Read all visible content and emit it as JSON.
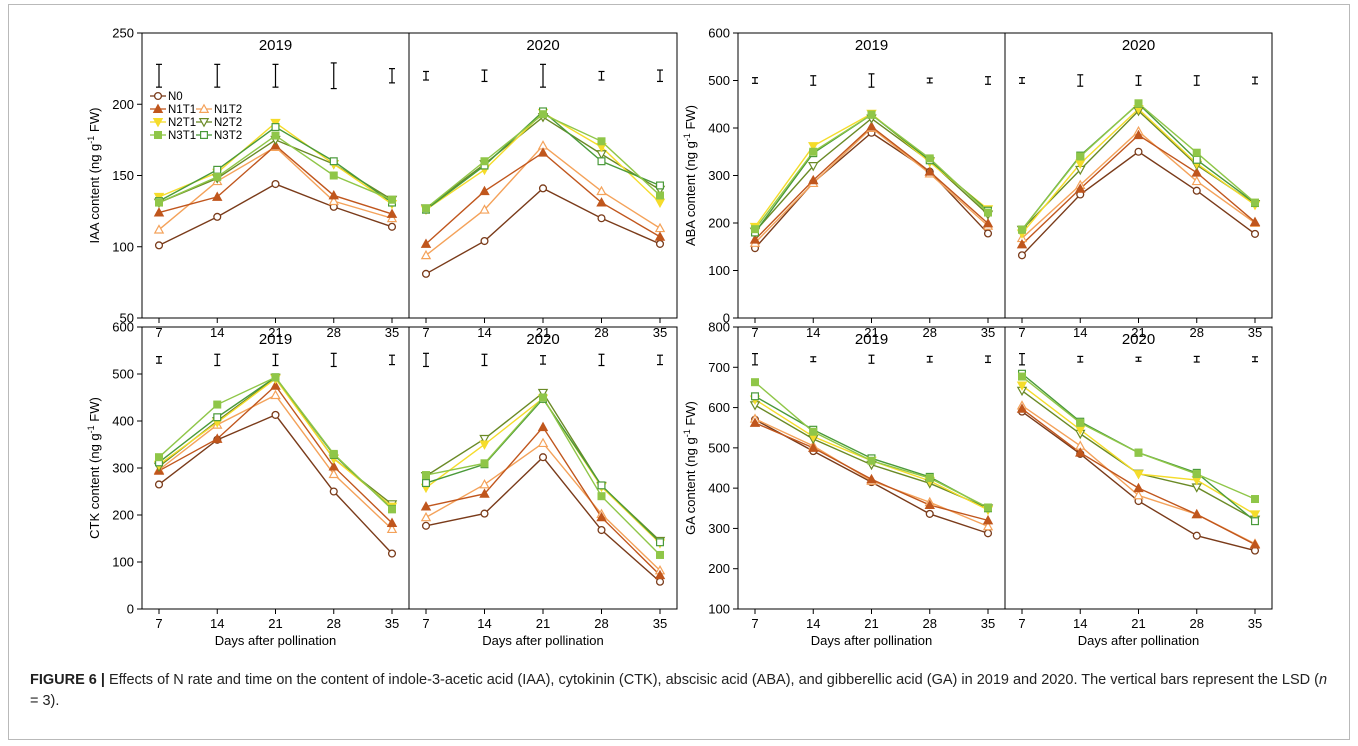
{
  "colors": {
    "N0": "#7a3b1a",
    "N1T1": "#c0561d",
    "N1T2": "#f4a25a",
    "N2T1": "#f5dc2b",
    "N2T2": "#6a8a26",
    "N3T1": "#8fc648",
    "N3T2": "#4a9a3a"
  },
  "markers": {
    "N0": "circle",
    "N1T1": "tri-up-filled",
    "N1T2": "tri-up-open",
    "N2T1": "tri-down-filled",
    "N2T2": "tri-down-open",
    "N3T1": "square-filled",
    "N3T2": "square-open"
  },
  "legend": {
    "rows": [
      [
        "N0"
      ],
      [
        "N1T1",
        "N1T2"
      ],
      [
        "N2T1",
        "N2T2"
      ],
      [
        "N3T1",
        "N3T2"
      ]
    ]
  },
  "caption": {
    "label": "FIGURE 6 |",
    "text_before_n": " Effects of N rate and time on the content of indole-3-acetic acid (IAA), cytokinin (CTK), abscisic acid (ABA), and gibberellic acid (GA) in 2019 and 2020. The vertical bars represent the LSD (",
    "n": "n",
    "text_after_n": " = 3)."
  },
  "chart_data": [
    {
      "type": "line",
      "ylabel_main": "IAA content (ng g",
      "ylabel_sup": "-1",
      "ylabel_end": " FW)",
      "ylim": [
        50,
        250
      ],
      "yticks": [
        50,
        100,
        150,
        200,
        250
      ],
      "xticks": [
        7,
        14,
        21,
        28,
        35
      ],
      "xlabel": "",
      "x": [
        7,
        14,
        21,
        28,
        35
      ],
      "lsd_y": 220,
      "panels": [
        {
          "year": "2019",
          "lsd": [
            8,
            8,
            8,
            9,
            5
          ],
          "series": [
            {
              "name": "N0",
              "values": [
                101,
                121,
                144,
                128,
                114
              ]
            },
            {
              "name": "N1T1",
              "values": [
                124,
                135,
                171,
                136,
                123
              ]
            },
            {
              "name": "N1T2",
              "values": [
                112,
                146,
                170,
                132,
                120
              ]
            },
            {
              "name": "N2T1",
              "values": [
                135,
                152,
                187,
                158,
                130
              ]
            },
            {
              "name": "N2T2",
              "values": [
                131,
                148,
                175,
                158,
                133
              ]
            },
            {
              "name": "N3T1",
              "values": [
                131,
                149,
                178,
                150,
                133
              ]
            },
            {
              "name": "N3T2",
              "values": [
                132,
                154,
                184,
                160,
                131
              ]
            }
          ]
        },
        {
          "year": "2020",
          "lsd": [
            3,
            4,
            8,
            3,
            4
          ],
          "series": [
            {
              "name": "N0",
              "values": [
                81,
                104,
                141,
                120,
                102
              ]
            },
            {
              "name": "N1T1",
              "values": [
                102,
                139,
                166,
                131,
                107
              ]
            },
            {
              "name": "N1T2",
              "values": [
                94,
                126,
                171,
                139,
                113
              ]
            },
            {
              "name": "N2T1",
              "values": [
                126,
                154,
                194,
                170,
                131
              ]
            },
            {
              "name": "N2T2",
              "values": [
                127,
                158,
                191,
                165,
                140
              ]
            },
            {
              "name": "N3T1",
              "values": [
                127,
                160,
                193,
                174,
                136
              ]
            },
            {
              "name": "N3T2",
              "values": [
                126,
                157,
                195,
                160,
                143
              ]
            }
          ]
        }
      ]
    },
    {
      "type": "line",
      "ylabel_main": "ABA content (ng g",
      "ylabel_sup": "-1",
      "ylabel_end": " FW)",
      "ylim": [
        0,
        600
      ],
      "yticks": [
        0,
        100,
        200,
        300,
        400,
        500,
        600
      ],
      "xticks": [
        7,
        14,
        21,
        28,
        35
      ],
      "xlabel": "",
      "x": [
        7,
        14,
        21,
        28,
        35
      ],
      "lsd_y": 500,
      "panels": [
        {
          "year": "2019",
          "lsd": [
            6,
            10,
            14,
            5,
            8
          ],
          "series": [
            {
              "name": "N0",
              "values": [
                147,
                285,
                390,
                308,
                178
              ]
            },
            {
              "name": "N1T1",
              "values": [
                165,
                290,
                403,
                308,
                199
              ]
            },
            {
              "name": "N1T2",
              "values": [
                158,
                284,
                400,
                304,
                194
              ]
            },
            {
              "name": "N2T1",
              "values": [
                192,
                362,
                430,
                328,
                229
              ]
            },
            {
              "name": "N2T2",
              "values": [
                182,
                320,
                420,
                330,
                218
              ]
            },
            {
              "name": "N3T1",
              "values": [
                187,
                350,
                428,
                336,
                222
              ]
            },
            {
              "name": "N3T2",
              "values": [
                180,
                347,
                428,
                332,
                226
              ]
            }
          ]
        },
        {
          "year": "2020",
          "lsd": [
            6,
            12,
            10,
            10,
            7
          ],
          "series": [
            {
              "name": "N0",
              "values": [
                132,
                260,
                350,
                268,
                177
              ]
            },
            {
              "name": "N1T1",
              "values": [
                155,
                272,
                385,
                306,
                202
              ]
            },
            {
              "name": "N1T2",
              "values": [
                168,
                280,
                393,
                288,
                200
              ]
            },
            {
              "name": "N2T1",
              "values": [
                178,
                325,
                440,
                325,
                238
              ]
            },
            {
              "name": "N2T2",
              "values": [
                186,
                312,
                436,
                322,
                240
              ]
            },
            {
              "name": "N3T1",
              "values": [
                186,
                340,
                452,
                348,
                243
              ]
            },
            {
              "name": "N3T2",
              "values": [
                186,
                342,
                451,
                333,
                242
              ]
            }
          ]
        }
      ]
    },
    {
      "type": "line",
      "ylabel_main": "CTK content (ng g",
      "ylabel_sup": "-1",
      "ylabel_end": " FW)",
      "ylim": [
        0,
        600
      ],
      "yticks": [
        0,
        100,
        200,
        300,
        400,
        500,
        600
      ],
      "xticks": [
        7,
        14,
        21,
        28,
        35
      ],
      "xlabel": "Days after pollination",
      "x": [
        7,
        14,
        21,
        28,
        35
      ],
      "lsd_y": 530,
      "panels": [
        {
          "year": "2019",
          "lsd": [
            7,
            12,
            12,
            14,
            10
          ],
          "series": [
            {
              "name": "N0",
              "values": [
                265,
                360,
                413,
                250,
                118
              ]
            },
            {
              "name": "N1T1",
              "values": [
                294,
                362,
                475,
                303,
                183
              ]
            },
            {
              "name": "N1T2",
              "values": [
                296,
                392,
                455,
                287,
                170
              ]
            },
            {
              "name": "N2T1",
              "values": [
                307,
                397,
                490,
                320,
                218
              ]
            },
            {
              "name": "N2T2",
              "values": [
                303,
                400,
                492,
                320,
                223
              ]
            },
            {
              "name": "N3T1",
              "values": [
                323,
                435,
                493,
                330,
                212
              ]
            },
            {
              "name": "N3T2",
              "values": [
                312,
                408,
                493,
                328,
                213
              ]
            }
          ]
        },
        {
          "year": "2020",
          "lsd": [
            14,
            12,
            9,
            12,
            10
          ],
          "series": [
            {
              "name": "N0",
              "values": [
                177,
                203,
                323,
                168,
                58
              ]
            },
            {
              "name": "N1T1",
              "values": [
                218,
                245,
                387,
                195,
                72
              ]
            },
            {
              "name": "N1T2",
              "values": [
                195,
                265,
                353,
                202,
                82
              ]
            },
            {
              "name": "N2T1",
              "values": [
                258,
                350,
                448,
                260,
                140
              ]
            },
            {
              "name": "N2T2",
              "values": [
                283,
                362,
                460,
                262,
                145
              ]
            },
            {
              "name": "N3T1",
              "values": [
                285,
                310,
                450,
                240,
                115
              ]
            },
            {
              "name": "N3T2",
              "values": [
                268,
                308,
                447,
                263,
                142
              ]
            }
          ]
        }
      ]
    },
    {
      "type": "line",
      "ylabel_main": "GA content (ng g",
      "ylabel_sup": "-1",
      "ylabel_end": " FW)",
      "ylim": [
        100,
        800
      ],
      "yticks": [
        100,
        200,
        300,
        400,
        500,
        600,
        700,
        800
      ],
      "xticks": [
        7,
        14,
        21,
        28,
        35
      ],
      "xlabel": "Days after pollination",
      "x": [
        7,
        14,
        21,
        28,
        35
      ],
      "lsd_y": 720,
      "panels": [
        {
          "year": "2019",
          "lsd": [
            14,
            6,
            10,
            7,
            8
          ],
          "series": [
            {
              "name": "N0",
              "values": [
                570,
                492,
                415,
                336,
                288
              ]
            },
            {
              "name": "N1T1",
              "values": [
                562,
                500,
                422,
                358,
                320
              ]
            },
            {
              "name": "N1T2",
              "values": [
                572,
                505,
                418,
                365,
                305
              ]
            },
            {
              "name": "N2T1",
              "values": [
                620,
                528,
                468,
                418,
                346
              ]
            },
            {
              "name": "N2T2",
              "values": [
                606,
                522,
                458,
                412,
                350
              ]
            },
            {
              "name": "N3T1",
              "values": [
                663,
                540,
                468,
                425,
                352
              ]
            },
            {
              "name": "N3T2",
              "values": [
                628,
                545,
                474,
                428,
                350
              ]
            }
          ]
        },
        {
          "year": "2020",
          "lsd": [
            14,
            7,
            5,
            7,
            6
          ],
          "series": [
            {
              "name": "N0",
              "values": [
                590,
                485,
                368,
                282,
                245
              ]
            },
            {
              "name": "N1T1",
              "values": [
                597,
                488,
                400,
                335,
                260
              ]
            },
            {
              "name": "N1T2",
              "values": [
                605,
                505,
                382,
                335,
                262
              ]
            },
            {
              "name": "N2T1",
              "values": [
                655,
                545,
                435,
                420,
                335
              ]
            },
            {
              "name": "N2T2",
              "values": [
                642,
                535,
                436,
                402,
                322
              ]
            },
            {
              "name": "N3T1",
              "values": [
                677,
                562,
                488,
                435,
                373
              ]
            },
            {
              "name": "N3T2",
              "values": [
                684,
                565,
                488,
                438,
                318
              ]
            }
          ]
        }
      ]
    }
  ]
}
